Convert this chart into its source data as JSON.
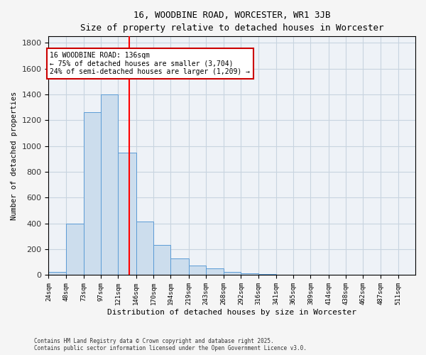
{
  "title": "16, WOODBINE ROAD, WORCESTER, WR1 3JB",
  "subtitle": "Size of property relative to detached houses in Worcester",
  "xlabel": "Distribution of detached houses by size in Worcester",
  "ylabel": "Number of detached properties",
  "bin_edges": [
    24,
    48,
    73,
    97,
    121,
    146,
    170,
    194,
    219,
    243,
    268,
    292,
    316,
    341,
    365,
    389,
    414,
    438,
    462,
    487,
    511
  ],
  "bar_heights": [
    25,
    400,
    1265,
    1400,
    950,
    415,
    235,
    130,
    75,
    50,
    22,
    12,
    8,
    4,
    2,
    1,
    1,
    0,
    0,
    0
  ],
  "bar_color": "#ccdded",
  "bar_edgecolor": "#5b9bd5",
  "grid_color": "#c8d4e0",
  "background_color": "#eef2f7",
  "fig_background": "#f5f5f5",
  "red_line_x": 136,
  "annotation_text": "16 WOODBINE ROAD: 136sqm\n← 75% of detached houses are smaller (3,704)\n24% of semi-detached houses are larger (1,209) →",
  "annotation_box_edgecolor": "#cc0000",
  "ylim": [
    0,
    1850
  ],
  "yticks": [
    0,
    200,
    400,
    600,
    800,
    1000,
    1200,
    1400,
    1600,
    1800
  ],
  "footnote1": "Contains HM Land Registry data © Crown copyright and database right 2025.",
  "footnote2": "Contains public sector information licensed under the Open Government Licence v3.0."
}
